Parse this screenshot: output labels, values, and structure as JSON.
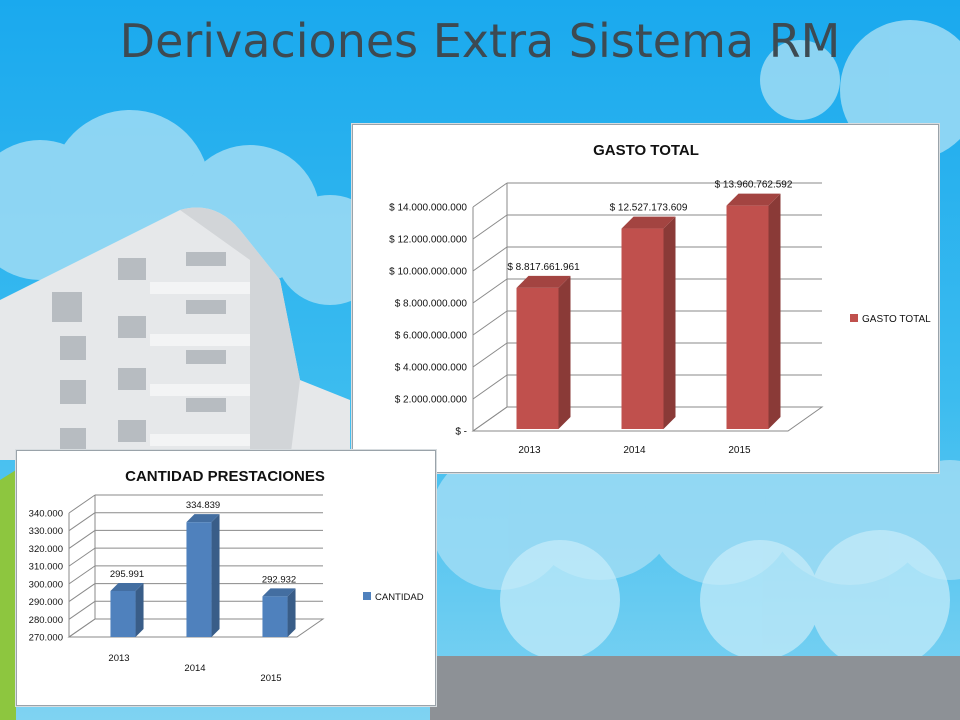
{
  "slide": {
    "title": "Derivaciones Extra Sistema RM"
  },
  "charts": {
    "gasto": {
      "type": "bar",
      "title": "GASTO TOTAL",
      "categories": [
        "2013",
        "2014",
        "2015"
      ],
      "series": [
        {
          "name": "GASTO TOTAL",
          "values": [
            8817661961,
            12527173609,
            13960762592
          ]
        }
      ],
      "data_labels": [
        "$ 8.817.661.961",
        "$ 12.527.173.609",
        "$ 13.960.762.592"
      ],
      "y_ticks": [
        0,
        2000000000,
        4000000000,
        6000000000,
        8000000000,
        10000000000,
        12000000000,
        14000000000
      ],
      "y_tick_labels": [
        "$ -",
        "$ 2.000.000.000",
        "$ 4.000.000.000",
        "$ 6.000.000.000",
        "$ 8.000.000.000",
        "$ 10.000.000.000",
        "$ 12.000.000.000",
        "$ 14.000.000.000"
      ],
      "ylim": [
        0,
        14000000000
      ],
      "color": "#c0504d",
      "legend": "right",
      "grid": true
    },
    "cantidad": {
      "type": "bar",
      "title": "CANTIDAD PRESTACIONES",
      "categories": [
        "2013",
        "2014",
        "2015"
      ],
      "series": [
        {
          "name": "CANTIDAD",
          "values": [
            295991,
            334839,
            292932
          ]
        }
      ],
      "data_labels": [
        "295.991",
        "334.839",
        "292.932"
      ],
      "y_ticks": [
        270000,
        280000,
        290000,
        300000,
        310000,
        320000,
        330000,
        340000
      ],
      "y_tick_labels": [
        "270.000",
        "280.000",
        "290.000",
        "300.000",
        "310.000",
        "320.000",
        "330.000",
        "340.000"
      ],
      "ylim": [
        270000,
        340000
      ],
      "color": "#4f81bd",
      "legend": "right",
      "grid": true
    }
  }
}
